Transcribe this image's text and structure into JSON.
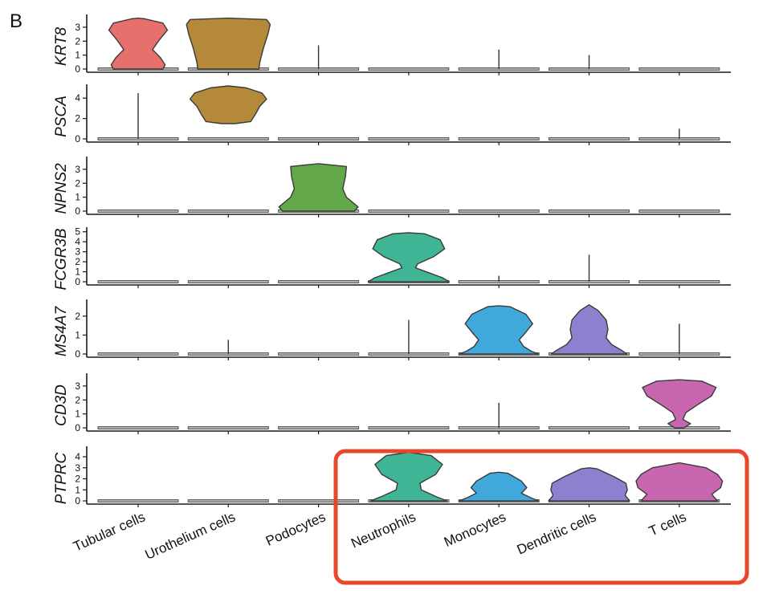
{
  "panel_label": "B",
  "chart_data": {
    "type": "violin",
    "categories": [
      "Tubular cells",
      "Urothelium cells",
      "Podocytes",
      "Neutrophils",
      "Monocytes",
      "Dendritic cells",
      "T cells"
    ],
    "colors": [
      "#e8706c",
      "#b48a3a",
      "#62a84a",
      "#3fb596",
      "#41a8dc",
      "#8c80cf",
      "#c866b0"
    ],
    "genes": [
      {
        "name": "KRT8",
        "ylim": [
          0,
          3.8
        ],
        "yticks": [
          0,
          1,
          2,
          3
        ],
        "violins": [
          {
            "category": 0,
            "shape": [
              [
                0,
                0.55
              ],
              [
                0.3,
                0.6
              ],
              [
                0.8,
                0.5
              ],
              [
                1.4,
                0.32
              ],
              [
                2.0,
                0.45
              ],
              [
                2.8,
                0.65
              ],
              [
                3.3,
                0.55
              ],
              [
                3.6,
                0.15
              ],
              [
                3.65,
                0
              ]
            ]
          },
          {
            "category": 1,
            "shape": [
              [
                0,
                0.68
              ],
              [
                0.5,
                0.7
              ],
              [
                1.5,
                0.78
              ],
              [
                2.5,
                0.88
              ],
              [
                3.2,
                0.93
              ],
              [
                3.55,
                0.85
              ],
              [
                3.65,
                0
              ]
            ]
          }
        ],
        "spikes": [
          {
            "category": 2,
            "max": 1.7
          },
          {
            "category": 4,
            "max": 1.4
          },
          {
            "category": 5,
            "max": 1.0
          }
        ]
      },
      {
        "name": "PSCA",
        "ylim": [
          0,
          5.2
        ],
        "yticks": [
          0,
          2,
          4
        ],
        "violins": [
          {
            "category": 1,
            "shape": [
              [
                1.5,
                0.15
              ],
              [
                1.7,
                0.5
              ],
              [
                2.4,
                0.6
              ],
              [
                3.2,
                0.7
              ],
              [
                3.9,
                0.85
              ],
              [
                4.5,
                0.75
              ],
              [
                5.0,
                0.4
              ],
              [
                5.2,
                0
              ]
            ]
          }
        ],
        "spikes": [
          {
            "category": 0,
            "max": 4.5
          },
          {
            "category": 6,
            "max": 1.0
          }
        ]
      },
      {
        "name": "NPNS2",
        "ylim": [
          0,
          3.8
        ],
        "yticks": [
          0,
          1,
          2,
          3
        ],
        "violins": [
          {
            "category": 2,
            "shape": [
              [
                0,
                0.8
              ],
              [
                0.3,
                0.88
              ],
              [
                1.0,
                0.62
              ],
              [
                1.6,
                0.54
              ],
              [
                2.5,
                0.6
              ],
              [
                3.2,
                0.62
              ],
              [
                3.4,
                0
              ]
            ]
          }
        ],
        "spikes": []
      },
      {
        "name": "FCGR3B",
        "ylim": [
          0,
          5.3
        ],
        "yticks": [
          0,
          1,
          2,
          3,
          4,
          5
        ],
        "violins": [
          {
            "category": 3,
            "shape": [
              [
                0,
                0.9
              ],
              [
                0.4,
                0.75
              ],
              [
                0.9,
                0.45
              ],
              [
                1.4,
                0.15
              ],
              [
                1.8,
                0.2
              ],
              [
                2.5,
                0.55
              ],
              [
                3.3,
                0.8
              ],
              [
                4.2,
                0.7
              ],
              [
                4.8,
                0.35
              ],
              [
                4.9,
                0
              ]
            ]
          }
        ],
        "spikes": [
          {
            "category": 4,
            "max": 0.6
          },
          {
            "category": 5,
            "max": 2.7
          }
        ]
      },
      {
        "name": "MS4A7",
        "ylim": [
          0,
          2.8
        ],
        "yticks": [
          0,
          1,
          2
        ],
        "violins": [
          {
            "category": 4,
            "shape": [
              [
                0,
                0.88
              ],
              [
                0.15,
                0.72
              ],
              [
                0.4,
                0.55
              ],
              [
                0.75,
                0.45
              ],
              [
                1.1,
                0.58
              ],
              [
                1.6,
                0.75
              ],
              [
                2.1,
                0.6
              ],
              [
                2.5,
                0.25
              ],
              [
                2.55,
                0
              ]
            ]
          },
          {
            "category": 5,
            "shape": [
              [
                0,
                0.84
              ],
              [
                0.2,
                0.72
              ],
              [
                0.5,
                0.5
              ],
              [
                0.85,
                0.38
              ],
              [
                1.3,
                0.42
              ],
              [
                1.8,
                0.38
              ],
              [
                2.3,
                0.2
              ],
              [
                2.6,
                0
              ]
            ]
          }
        ],
        "spikes": [
          {
            "category": 1,
            "max": 0.75
          },
          {
            "category": 3,
            "max": 1.8
          },
          {
            "category": 6,
            "max": 1.6
          }
        ]
      },
      {
        "name": "CD3D",
        "ylim": [
          0,
          3.8
        ],
        "yticks": [
          0,
          1,
          2,
          3
        ],
        "violins": [
          {
            "category": 6,
            "shape": [
              [
                0,
                0.1
              ],
              [
                0.3,
                0.25
              ],
              [
                0.6,
                0.08
              ],
              [
                1.1,
                0.15
              ],
              [
                1.6,
                0.38
              ],
              [
                2.3,
                0.72
              ],
              [
                2.9,
                0.82
              ],
              [
                3.35,
                0.5
              ],
              [
                3.45,
                0
              ]
            ]
          }
        ],
        "spikes": [
          {
            "category": 4,
            "max": 1.8
          }
        ]
      },
      {
        "name": "PTPRC",
        "ylim": [
          0,
          4.8
        ],
        "yticks": [
          0,
          1,
          2,
          3,
          4
        ],
        "violins": [
          {
            "category": 3,
            "shape": [
              [
                0,
                0.85
              ],
              [
                0.4,
                0.6
              ],
              [
                1.0,
                0.28
              ],
              [
                1.6,
                0.25
              ],
              [
                2.4,
                0.6
              ],
              [
                3.3,
                0.75
              ],
              [
                4.1,
                0.5
              ],
              [
                4.4,
                0
              ]
            ]
          },
          {
            "category": 4,
            "shape": [
              [
                0,
                0.88
              ],
              [
                0.3,
                0.7
              ],
              [
                0.7,
                0.5
              ],
              [
                1.2,
                0.62
              ],
              [
                1.8,
                0.5
              ],
              [
                2.5,
                0.2
              ],
              [
                2.6,
                0
              ]
            ]
          },
          {
            "category": 5,
            "shape": [
              [
                0,
                0.9
              ],
              [
                0.5,
                0.8
              ],
              [
                1.0,
                0.85
              ],
              [
                1.6,
                0.82
              ],
              [
                2.2,
                0.55
              ],
              [
                2.9,
                0.18
              ],
              [
                3.0,
                0
              ]
            ]
          },
          {
            "category": 6,
            "shape": [
              [
                0,
                0.85
              ],
              [
                0.6,
                0.72
              ],
              [
                1.2,
                0.92
              ],
              [
                1.8,
                0.96
              ],
              [
                2.4,
                0.85
              ],
              [
                3.0,
                0.6
              ],
              [
                3.45,
                0
              ]
            ]
          }
        ],
        "spikes": []
      }
    ]
  },
  "highlight": {
    "color": "#e8472e"
  }
}
